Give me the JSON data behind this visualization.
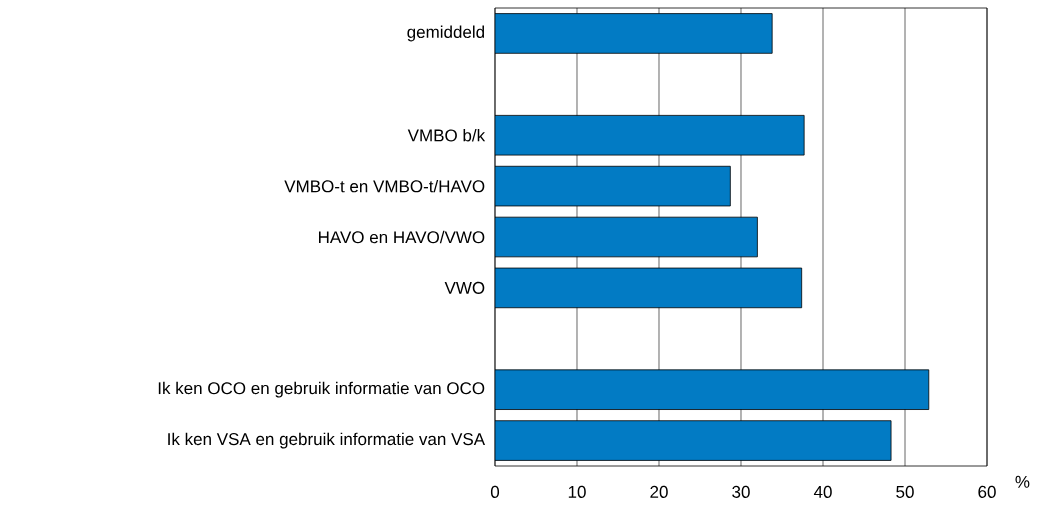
{
  "chart_data": {
    "type": "bar",
    "orientation": "horizontal",
    "categories": [
      "gemiddeld",
      null,
      "VMBO b/k",
      "VMBO-t en VMBO-t/HAVO",
      "HAVO en HAVO/VWO",
      "VWO",
      null,
      "Ik ken OCO en gebruik informatie van OCO",
      "Ik ken VSA en gebruik informatie van VSA"
    ],
    "values": [
      33.8,
      null,
      37.7,
      28.7,
      32.0,
      37.4,
      null,
      52.9,
      48.3
    ],
    "color": "#027bc4",
    "xlabel": "%",
    "xlim": [
      0,
      60
    ],
    "xticks": [
      0,
      10,
      20,
      30,
      40,
      50,
      60
    ],
    "grid": "x"
  }
}
